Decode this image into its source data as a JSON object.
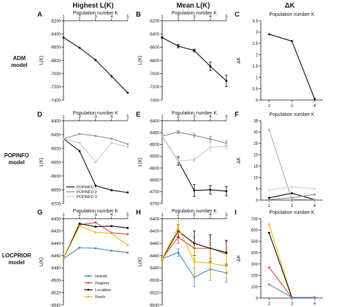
{
  "column_headers": [
    "Highest L(K)",
    "Mean L(K)",
    "ΔK"
  ],
  "row_labels": [
    {
      "line1": "ADM",
      "line2": "model"
    },
    {
      "line1": "POPINFO",
      "line2": "model"
    },
    {
      "line1": "LOCPRIOR",
      "line2": "model"
    }
  ],
  "chart_data": [
    {
      "id": "A",
      "type": "line",
      "xlabel_top": "Population number K",
      "ylabel": "L(K)",
      "x_ticks": [
        1,
        2,
        3,
        4,
        5
      ],
      "ylim": [
        -7400,
        -6200
      ],
      "y_ticks": [
        -6200,
        -6400,
        -6600,
        -6800,
        -7000,
        -7200,
        -7400
      ],
      "series": [
        {
          "color": "#000000",
          "x": [
            1,
            2,
            3,
            4,
            5
          ],
          "values": [
            -6455,
            -6610,
            -6795,
            -7040,
            -7290
          ]
        }
      ]
    },
    {
      "id": "B",
      "type": "line",
      "xlabel_top": "Population number K",
      "ylabel": "L(K)",
      "x_ticks": [
        1,
        2,
        3,
        4,
        5
      ],
      "ylim": [
        -7400,
        -6200
      ],
      "y_ticks": [
        -6200,
        -6400,
        -6600,
        -6800,
        -7000,
        -7200,
        -7400
      ],
      "series": [
        {
          "color": "#000000",
          "x": [
            1,
            2,
            3,
            4,
            5
          ],
          "values": [
            -6455,
            -6585,
            -6650,
            -6890,
            -7110
          ],
          "errors": [
            10,
            25,
            20,
            65,
            85
          ]
        }
      ]
    },
    {
      "id": "C",
      "type": "line",
      "xlabel_top": "Population number K",
      "ylabel": "ΔK",
      "x_ticks": [
        2,
        3,
        4
      ],
      "ylim": [
        0,
        3.5
      ],
      "y_ticks": [
        0,
        0.5,
        1,
        1.5,
        2,
        2.5,
        3,
        3.5
      ],
      "series": [
        {
          "color": "#000000",
          "x": [
            2,
            3,
            4
          ],
          "values": [
            2.9,
            2.6,
            0.05
          ]
        }
      ]
    },
    {
      "id": "D",
      "type": "line",
      "xlabel_top": "Population number K",
      "ylabel": "L(K)",
      "x_ticks": [
        1,
        2,
        3,
        4,
        5
      ],
      "ylim": [
        -6700,
        -6400
      ],
      "y_ticks": [
        -6400,
        -6450,
        -6500,
        -6550,
        -6600,
        -6650,
        -6700
      ],
      "legend": [
        "POPINFO 1",
        "POPINFO 2",
        "POPINFO 3"
      ],
      "series": [
        {
          "name": "POPINFO 1",
          "color": "#000000",
          "x": [
            1,
            2,
            3,
            4,
            5
          ],
          "values": [
            -6465,
            -6510,
            -6635,
            -6652,
            -6660
          ]
        },
        {
          "name": "POPINFO 2",
          "color": "#888888",
          "x": [
            1,
            2,
            3,
            4,
            5
          ],
          "values": [
            -6465,
            -6448,
            -6455,
            -6465,
            -6485
          ]
        },
        {
          "name": "POPINFO 3",
          "color": "#c8c8c8",
          "x": [
            1,
            2,
            3,
            4,
            5
          ],
          "values": [
            -6465,
            -6480,
            -6550,
            -6480,
            -6495
          ]
        }
      ]
    },
    {
      "id": "E",
      "type": "line",
      "xlabel_top": "Population number K",
      "ylabel": "L(K)",
      "x_ticks": [
        1,
        2,
        3,
        4,
        5
      ],
      "ylim": [
        -6750,
        -6400
      ],
      "y_ticks": [
        -6400,
        -6450,
        -6500,
        -6550,
        -6600,
        -6650,
        -6700,
        -6750
      ],
      "series": [
        {
          "color": "#000000",
          "x": [
            1,
            2,
            3,
            4,
            5
          ],
          "values": [
            -6465,
            -6570,
            -6695,
            -6692,
            -6698
          ],
          "errors": [
            5,
            18,
            25,
            18,
            20
          ]
        },
        {
          "color": "#888888",
          "x": [
            1,
            2,
            3,
            4,
            5
          ],
          "values": [
            -6465,
            -6448,
            -6462,
            -6478,
            -6495
          ],
          "errors": [
            5,
            6,
            8,
            12,
            10
          ]
        },
        {
          "color": "#c8c8c8",
          "x": [
            1,
            2,
            3,
            4,
            5
          ],
          "values": [
            -6465,
            -6570,
            -6565,
            -6512,
            -6508
          ],
          "errors": [
            5,
            8,
            8,
            15,
            12
          ]
        }
      ]
    },
    {
      "id": "F",
      "type": "line",
      "xlabel_top": "Population number K",
      "ylabel": "ΔK",
      "x_ticks": [
        2,
        3,
        4
      ],
      "ylim": [
        0,
        35
      ],
      "y_ticks": [
        0,
        5,
        10,
        15,
        20,
        25,
        30,
        35
      ],
      "series": [
        {
          "color": "#000000",
          "x": [
            2,
            3,
            4
          ],
          "values": [
            1,
            3,
            0.2
          ]
        },
        {
          "color": "#888888",
          "x": [
            2,
            3,
            4
          ],
          "values": [
            0.2,
            1,
            2.5
          ]
        },
        {
          "color": "#a9a9a9",
          "x": [
            2,
            3,
            4
          ],
          "values": [
            31,
            0.3,
            0.2
          ]
        },
        {
          "color": "#d0d0d0",
          "x": [
            2,
            3,
            4
          ],
          "values": [
            4.5,
            5.8,
            5
          ]
        }
      ]
    },
    {
      "id": "G",
      "type": "line",
      "xlabel_top": "Population number K",
      "ylabel": "L(K)",
      "x_ticks": [
        1,
        2,
        3,
        4,
        5
      ],
      "ylim": [
        -6540,
        -6400
      ],
      "y_ticks": [
        -6400,
        -6420,
        -6440,
        -6460,
        -6480,
        -6500,
        -6520,
        -6540
      ],
      "legend": [
        "Islands",
        "Regions",
        "Localities",
        "Reefs"
      ],
      "series": [
        {
          "name": "Islands",
          "color": "#4a7fc0",
          "x": [
            1,
            2,
            3,
            4,
            5
          ],
          "values": [
            -6465,
            -6447,
            -6448,
            -6452,
            -6455
          ]
        },
        {
          "name": "Regions",
          "color": "#e03c3c",
          "x": [
            1,
            2,
            3,
            4,
            5
          ],
          "values": [
            -6465,
            -6410,
            -6406,
            -6423,
            -6425
          ]
        },
        {
          "name": "Localities",
          "color": "#000000",
          "x": [
            1,
            2,
            3,
            4,
            5
          ],
          "values": [
            -6465,
            -6408,
            -6413,
            -6412,
            -6415
          ]
        },
        {
          "name": "Reefs",
          "color": "#f5b400",
          "x": [
            1,
            2,
            3,
            4,
            5
          ],
          "values": [
            -6465,
            -6412,
            -6422,
            -6424,
            -6443
          ]
        }
      ]
    },
    {
      "id": "H",
      "type": "line",
      "xlabel_top": "Population number K",
      "ylabel": "L(K)",
      "x_ticks": [
        1,
        2,
        3,
        4,
        5
      ],
      "ylim": [
        -6540,
        -6400
      ],
      "y_ticks": [
        -6400,
        -6420,
        -6440,
        -6460,
        -6480,
        -6500,
        -6520,
        -6540
      ],
      "series": [
        {
          "color": "#4a7fc0",
          "x": [
            1,
            2,
            3,
            4,
            5
          ],
          "values": [
            -6465,
            -6455,
            -6495,
            -6482,
            -6488
          ],
          "errors": [
            2,
            6,
            15,
            18,
            15
          ]
        },
        {
          "color": "#e03c3c",
          "x": [
            1,
            2,
            3,
            4,
            5
          ],
          "values": [
            -6465,
            -6430,
            -6448,
            -6448,
            -6457
          ],
          "errors": [
            2,
            10,
            18,
            22,
            20
          ]
        },
        {
          "color": "#000000",
          "x": [
            1,
            2,
            3,
            4,
            5
          ],
          "values": [
            -6465,
            -6420,
            -6440,
            -6448,
            -6455
          ],
          "errors": [
            2,
            10,
            20,
            22,
            20
          ]
        },
        {
          "color": "#f5b400",
          "x": [
            1,
            2,
            3,
            4,
            5
          ],
          "values": [
            -6465,
            -6414,
            -6470,
            -6472,
            -6477
          ],
          "errors": [
            2,
            10,
            25,
            28,
            20
          ]
        }
      ]
    },
    {
      "id": "I",
      "type": "line",
      "xlabel_top": "Population number K",
      "ylabel": "ΔK",
      "x_ticks": [
        2,
        3,
        4
      ],
      "ylim": [
        0,
        700
      ],
      "y_ticks": [
        0,
        100,
        200,
        300,
        400,
        500,
        600,
        700
      ],
      "series": [
        {
          "color": "#f5b400",
          "x": [
            2,
            3,
            4
          ],
          "values": [
            650,
            5,
            5
          ]
        },
        {
          "color": "#000000",
          "x": [
            2,
            3,
            4
          ],
          "values": [
            575,
            5,
            5
          ]
        },
        {
          "color": "#e03c3c",
          "x": [
            2,
            3,
            4
          ],
          "values": [
            270,
            5,
            5
          ]
        },
        {
          "color": "#4a7fc0",
          "x": [
            2,
            3,
            4
          ],
          "values": [
            120,
            5,
            5
          ]
        }
      ]
    }
  ]
}
